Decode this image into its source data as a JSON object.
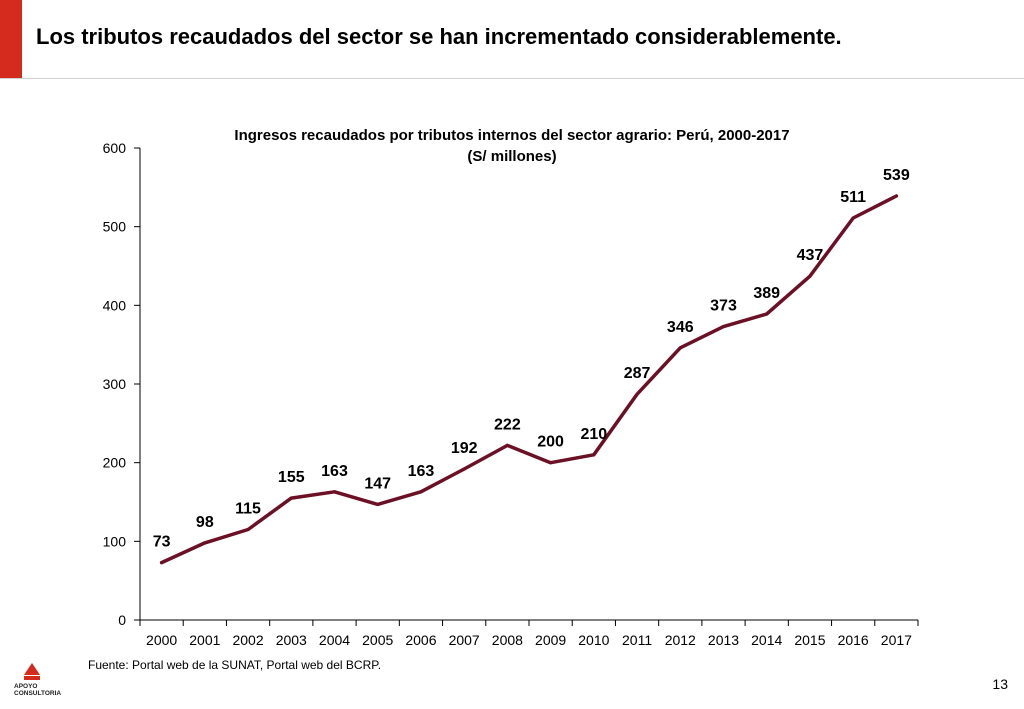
{
  "slide": {
    "title": "Los tributos recaudados del sector se han incrementado considerablemente.",
    "source": "Fuente: Portal web de la SUNAT, Portal web del BCRP.",
    "page_number": "13",
    "logo_text": [
      "APOYO",
      "CONSULTORIA"
    ]
  },
  "colors": {
    "accent": "#d52b1e",
    "series": "#6b1025"
  },
  "chart_data": {
    "type": "line",
    "title": "Ingresos recaudados por tributos internos del sector agrario: Perú, 2000-2017",
    "subtitle": "(S/ millones)",
    "xlabel": "",
    "ylabel": "",
    "ylim": [
      0,
      600
    ],
    "yticks": [
      0,
      100,
      200,
      300,
      400,
      500,
      600
    ],
    "categories": [
      "2000",
      "2001",
      "2002",
      "2003",
      "2004",
      "2005",
      "2006",
      "2007",
      "2008",
      "2009",
      "2010",
      "2011",
      "2012",
      "2013",
      "2014",
      "2015",
      "2016",
      "2017"
    ],
    "series": [
      {
        "values": [
          73,
          98,
          115,
          155,
          163,
          147,
          163,
          192,
          222,
          200,
          210,
          287,
          346,
          373,
          389,
          437,
          511,
          539
        ]
      }
    ],
    "data_labels": true,
    "grid": false,
    "legend": "none"
  }
}
